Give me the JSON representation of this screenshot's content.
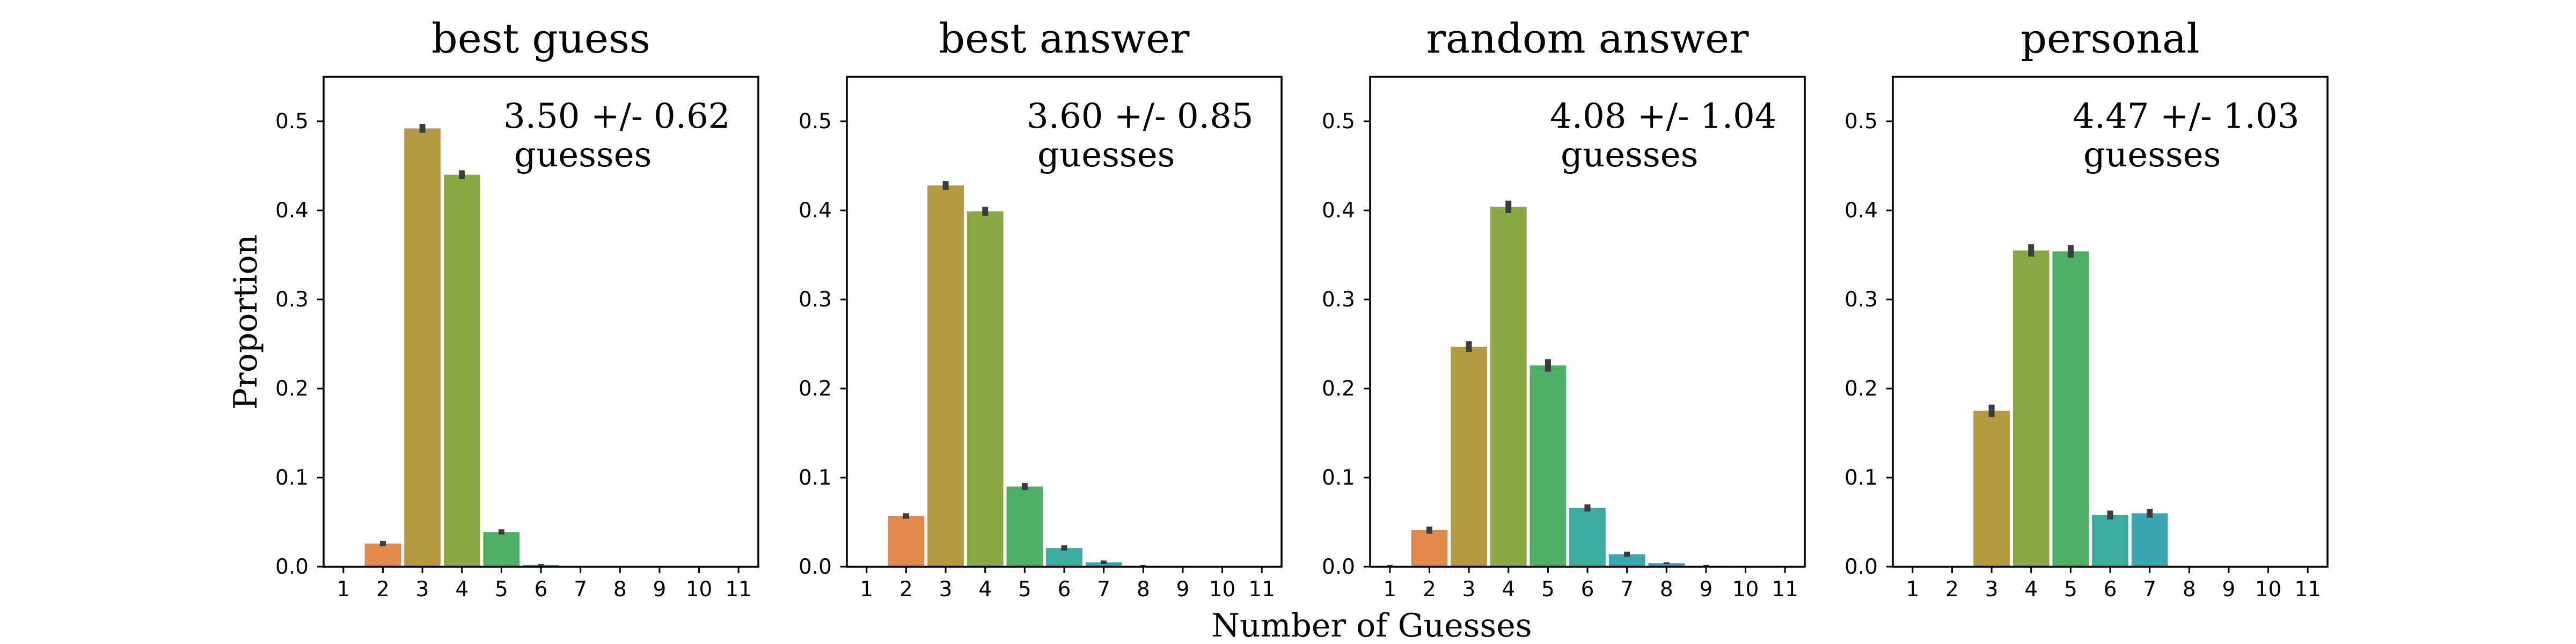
{
  "chart_data": {
    "type": "bar",
    "shared": {
      "xlabel": "Number of Guesses",
      "ylabel": "Proportion",
      "categories": [
        "1",
        "2",
        "3",
        "4",
        "5",
        "6",
        "7",
        "8",
        "9",
        "10",
        "11"
      ],
      "ylim": [
        0,
        0.55
      ],
      "yticks": [
        "0.0",
        "0.1",
        "0.2",
        "0.3",
        "0.4",
        "0.5"
      ],
      "colors": [
        "#c44e52",
        "#e1894a",
        "#b59a42",
        "#8aa943",
        "#4db065",
        "#3aada0",
        "#3aa8b0",
        "#3b9cc0",
        "#4f7ec8",
        "#7d6ed0",
        "#a862c8"
      ]
    },
    "panels": [
      {
        "title": "best guess",
        "annotation_stat": "3.50 +/- 0.62",
        "annotation_unit": "guesses",
        "values": [
          0,
          0.026,
          0.492,
          0.44,
          0.039,
          0.002,
          0,
          0,
          0,
          0,
          0
        ],
        "errors": [
          0,
          0.003,
          0.005,
          0.005,
          0.003,
          0.001,
          0,
          0,
          0,
          0,
          0
        ]
      },
      {
        "title": "best answer",
        "annotation_stat": "3.60 +/- 0.85",
        "annotation_unit": "guesses",
        "values": [
          0,
          0.057,
          0.428,
          0.399,
          0.09,
          0.021,
          0.005,
          0.001,
          0,
          0,
          0
        ],
        "errors": [
          0,
          0.003,
          0.005,
          0.005,
          0.004,
          0.003,
          0.002,
          0.001,
          0,
          0,
          0
        ]
      },
      {
        "title": "random answer",
        "annotation_stat": "4.08 +/- 1.04",
        "annotation_unit": "guesses",
        "values": [
          0.001,
          0.041,
          0.247,
          0.404,
          0.226,
          0.066,
          0.014,
          0.004,
          0.001,
          0,
          0
        ],
        "errors": [
          0.001,
          0.004,
          0.006,
          0.007,
          0.007,
          0.004,
          0.003,
          0.001,
          0.001,
          0,
          0
        ]
      },
      {
        "title": "personal",
        "annotation_stat": "4.47 +/- 1.03",
        "annotation_unit": "guesses",
        "values": [
          0,
          0,
          0.175,
          0.355,
          0.354,
          0.058,
          0.06,
          0,
          0,
          0,
          0
        ],
        "errors": [
          0,
          0,
          0.007,
          0.007,
          0.007,
          0.005,
          0.005,
          0,
          0,
          0,
          0
        ]
      }
    ]
  }
}
